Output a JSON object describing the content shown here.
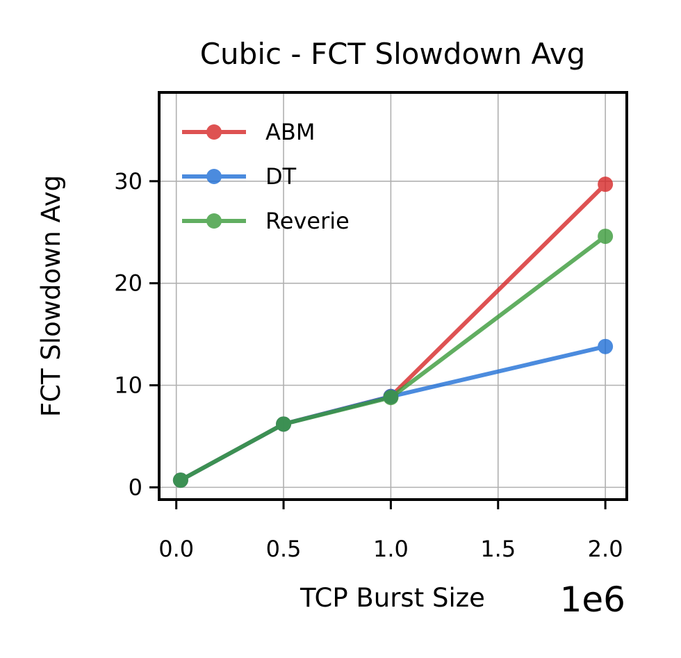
{
  "chart_data": {
    "type": "line",
    "title": "Cubic - FCT Slowdown Avg",
    "xlabel": "TCP Burst Size",
    "ylabel": "FCT Slowdown Avg",
    "x_offset_label": "1e6",
    "x": [
      0.02,
      0.5,
      1.0,
      2.0
    ],
    "xlim": [
      -0.08,
      2.1
    ],
    "ylim": [
      -1.2,
      38.7
    ],
    "x_ticks": [
      0.0,
      0.5,
      1.0,
      1.5,
      2.0
    ],
    "x_tick_labels": [
      "0.0",
      "0.5",
      "1.0",
      "1.5",
      "2.0"
    ],
    "y_ticks": [
      0,
      10,
      20,
      30
    ],
    "y_tick_labels": [
      "0",
      "10",
      "20",
      "30"
    ],
    "grid": true,
    "legend_position": "top-left",
    "series": [
      {
        "name": "ABM",
        "color": "#d62728",
        "values": [
          0.7,
          6.2,
          8.9,
          29.7
        ]
      },
      {
        "name": "DT",
        "color": "#1f6fd6",
        "values": [
          0.7,
          6.2,
          8.9,
          13.8
        ]
      },
      {
        "name": "Reverie",
        "color": "#3a9a3a",
        "values": [
          0.7,
          6.2,
          8.8,
          24.6
        ]
      }
    ]
  }
}
